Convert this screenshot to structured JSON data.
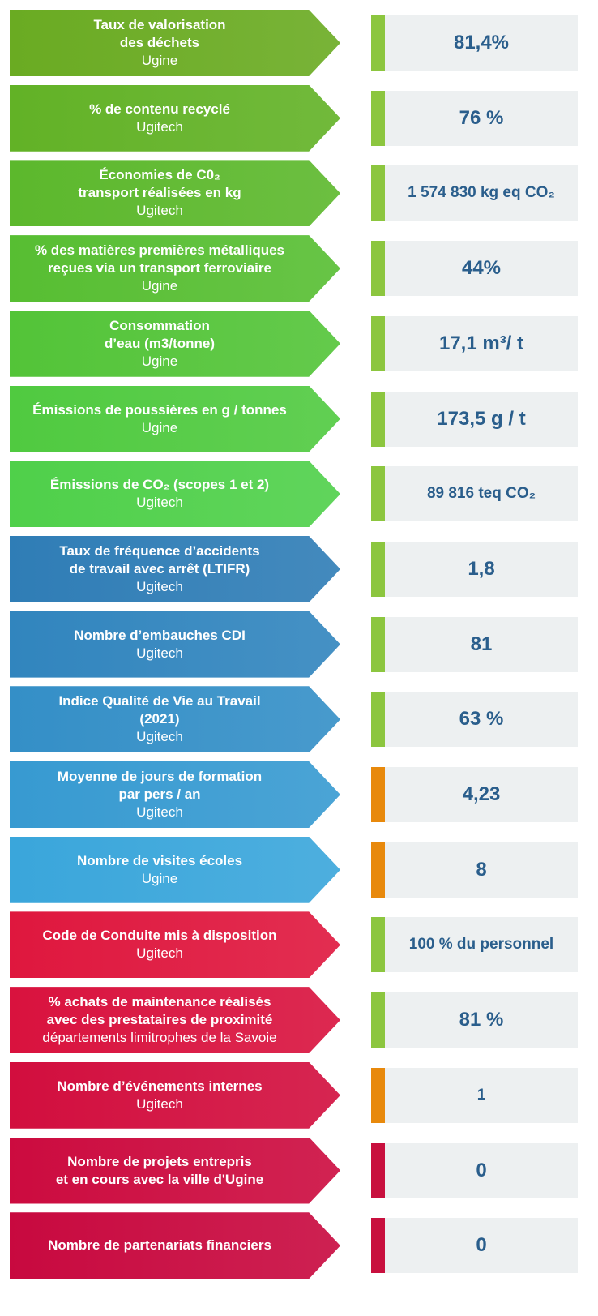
{
  "rows": [
    {
      "lines": [
        "Taux de valorisation",
        "des déchets"
      ],
      "site": "Ugine",
      "value": "81,4%",
      "color": "#6aab22",
      "status": "#8cc63f"
    },
    {
      "lines": [
        "% de contenu recyclé"
      ],
      "site": "Ugitech",
      "value": "76 %",
      "color": "#62b226",
      "status": "#8cc63f"
    },
    {
      "lines": [
        "Économies de C0₂",
        "transport réalisées en kg"
      ],
      "site": "Ugitech",
      "value": "1 574 830 kg eq CO₂",
      "color": "#5cb82c",
      "status": "#8cc63f"
    },
    {
      "lines": [
        "% des matières premières métalliques",
        "reçues via un transport ferroviaire"
      ],
      "site": "Ugine",
      "value": "44%",
      "color": "#57be32",
      "status": "#8cc63f"
    },
    {
      "lines": [
        "Consommation",
        "d’eau (m3/tonne)"
      ],
      "site": "Ugine",
      "value": "17,1 m³/ t",
      "color": "#53c438",
      "status": "#8cc63f"
    },
    {
      "lines": [
        "Émissions de poussières en g / tonnes"
      ],
      "site": "Ugine",
      "value": "173,5 g / t",
      "color": "#50ca40",
      "status": "#8cc63f"
    },
    {
      "lines": [
        "Émissions de CO₂ (scopes 1 et 2)"
      ],
      "site": "Ugitech",
      "value": "89 816 teq CO₂",
      "color": "#4fd04a",
      "status": "#8cc63f"
    },
    {
      "lines": [
        "Taux de fréquence d’accidents",
        "de travail avec arrêt (LTIFR)"
      ],
      "site": "Ugitech",
      "value": "1,8",
      "color": "#2f7db6",
      "status": "#8cc63f"
    },
    {
      "lines": [
        "Nombre d’embauches CDI"
      ],
      "site": "Ugitech",
      "value": "81",
      "color": "#3185be",
      "status": "#8cc63f"
    },
    {
      "lines": [
        "Indice Qualité de Vie au Travail",
        "(2021)"
      ],
      "site": "Ugitech",
      "value": "63 %",
      "color": "#348fc7",
      "status": "#8cc63f"
    },
    {
      "lines": [
        "Moyenne de jours de formation",
        "par pers / an"
      ],
      "site": "Ugitech",
      "value": "4,23",
      "color": "#379ad1",
      "status": "#e8890c"
    },
    {
      "lines": [
        "Nombre de visites écoles"
      ],
      "site": "Ugine",
      "value": "8",
      "color": "#3aa6db",
      "status": "#e8890c"
    },
    {
      "lines": [
        "Code de Conduite mis à disposition"
      ],
      "site": "Ugitech",
      "value": "100 % du personnel",
      "color": "#df173e",
      "status": "#8cc63f"
    },
    {
      "lines": [
        "% achats de maintenance réalisés",
        "avec des prestataires de proximité"
      ],
      "site": "départements limitrophes de la Savoie",
      "value": "81 %",
      "color": "#d9123e",
      "status": "#8cc63f"
    },
    {
      "lines": [
        "Nombre d’événements internes"
      ],
      "site": "Ugitech",
      "value": "1",
      "color": "#d20e3e",
      "status": "#e8890c"
    },
    {
      "lines": [
        "Nombre de projets entrepris",
        "et en cours avec la ville d'Ugine"
      ],
      "value": "0",
      "color": "#cc0b3f",
      "status": "#c8103e"
    },
    {
      "lines": [
        "Nombre de partenariats financiers"
      ],
      "value": "0",
      "color": "#c8093f",
      "status": "#c8103e"
    }
  ]
}
